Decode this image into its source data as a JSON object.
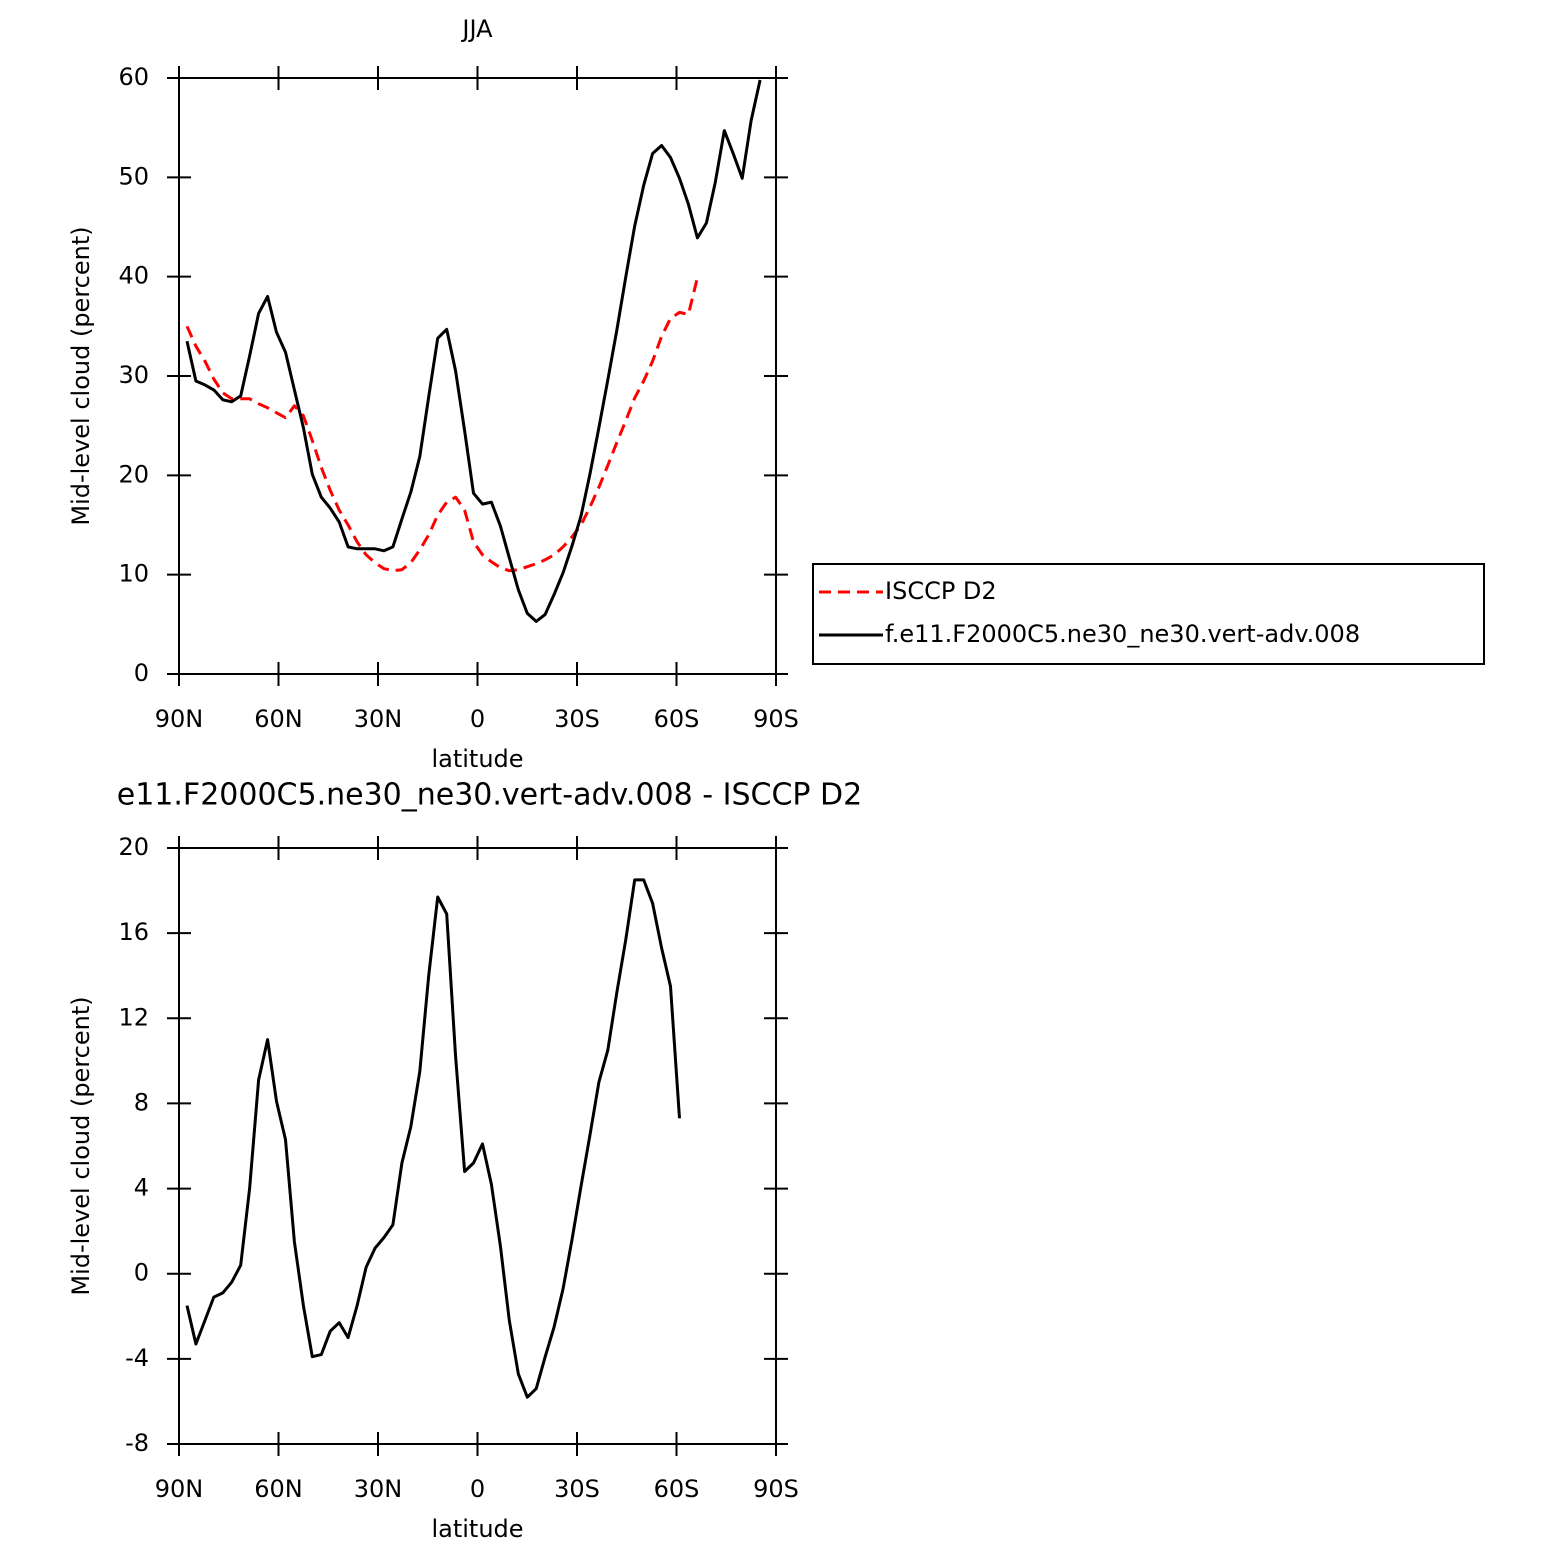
{
  "chart_data": [
    {
      "type": "line",
      "title": "JJA",
      "xlabel": "latitude",
      "ylabel": "Mid-level cloud (percent)",
      "x": [
        87.6,
        84.9,
        82.2,
        79.5,
        76.8,
        74.1,
        71.4,
        68.7,
        66.0,
        63.3,
        60.6,
        57.9,
        55.2,
        52.5,
        49.8,
        47.1,
        44.4,
        41.7,
        39.0,
        36.3,
        33.6,
        30.9,
        28.2,
        25.5,
        22.8,
        20.1,
        17.4,
        14.7,
        12.0,
        9.3,
        6.6,
        3.9,
        1.2,
        -1.5,
        -4.2,
        -6.9,
        -9.6,
        -12.3,
        -15.0,
        -17.7,
        -20.4,
        -23.1,
        -25.8,
        -28.5,
        -31.2,
        -33.9,
        -36.6,
        -39.3,
        -42.0,
        -44.7,
        -47.4,
        -50.1,
        -52.8,
        -55.5,
        -58.2,
        -60.9,
        -63.6,
        -66.3,
        -69.0,
        -71.7,
        -74.4,
        -77.1,
        -79.8,
        -82.5,
        -85.2
      ],
      "series": [
        {
          "name": "ISCCP D2",
          "color": "#ff0000",
          "dashed": true,
          "values": [
            35.0,
            33.0,
            31.5,
            29.7,
            28.3,
            27.7,
            27.7,
            27.7,
            27.2,
            26.8,
            26.3,
            25.8,
            27.0,
            26.0,
            23.5,
            20.8,
            18.5,
            16.5,
            15.0,
            13.3,
            12.0,
            11.2,
            10.6,
            10.4,
            10.5,
            11.2,
            12.5,
            14.0,
            16.0,
            17.3,
            17.8,
            16.5,
            13.3,
            12.0,
            11.3,
            10.7,
            10.4,
            10.5,
            10.8,
            11.1,
            11.5,
            12.0,
            12.8,
            13.8,
            15.0,
            16.8,
            18.8,
            21.0,
            23.3,
            25.5,
            27.8,
            29.5,
            31.5,
            34.0,
            35.8,
            36.4,
            36.2,
            39.9,
            null,
            null,
            null,
            null,
            null,
            null,
            null
          ]
        },
        {
          "name": "f.e11.F2000C5.ne30_ne30.vert-adv.008",
          "color": "#000000",
          "dashed": false,
          "values": [
            33.5,
            29.5,
            29.1,
            28.6,
            27.6,
            27.4,
            28.0,
            32.0,
            36.3,
            38.0,
            34.4,
            32.4,
            28.6,
            24.8,
            20.1,
            17.8,
            16.7,
            15.3,
            12.8,
            12.6,
            12.6,
            12.6,
            12.4,
            12.8,
            15.6,
            18.3,
            21.9,
            27.9,
            33.8,
            34.7,
            30.5,
            24.5,
            18.2,
            17.1,
            17.3,
            14.9,
            11.7,
            8.5,
            6.1,
            5.3,
            6.0,
            8.0,
            10.2,
            12.9,
            15.9,
            20.1,
            24.8,
            29.6,
            34.6,
            40.0,
            45.1,
            49.2,
            52.4,
            53.2,
            52.0,
            49.9,
            47.3,
            43.9,
            45.4,
            49.5,
            54.7,
            52.4,
            49.9,
            55.7,
            59.8
          ]
        }
      ],
      "xlim": [
        90,
        -90
      ],
      "xticks": [
        {
          "value": 90,
          "label": "90N"
        },
        {
          "value": 60,
          "label": "60N"
        },
        {
          "value": 30,
          "label": "30N"
        },
        0,
        {
          "value": -30,
          "label": "30S"
        },
        {
          "value": -60,
          "label": "60S"
        },
        {
          "value": -90,
          "label": "90S"
        }
      ],
      "ylim": [
        0,
        60
      ],
      "yticks": [
        0,
        10,
        20,
        30,
        40,
        50,
        60
      ],
      "legend": "right"
    },
    {
      "type": "line",
      "title": "e11.F2000C5.ne30_ne30.vert-adv.008 - ISCCP D2",
      "xlabel": "latitude",
      "ylabel": "Mid-level cloud (percent)",
      "x": [
        87.6,
        84.9,
        82.2,
        79.5,
        76.8,
        74.1,
        71.4,
        68.7,
        66.0,
        63.3,
        60.6,
        57.9,
        55.2,
        52.5,
        49.8,
        47.1,
        44.4,
        41.7,
        39.0,
        36.3,
        33.6,
        30.9,
        28.2,
        25.5,
        22.8,
        20.1,
        17.4,
        14.7,
        12.0,
        9.3,
        6.6,
        3.9,
        1.2,
        -1.5,
        -4.2,
        -6.9,
        -9.6,
        -12.3,
        -15.0,
        -17.7,
        -20.4,
        -23.1,
        -25.8,
        -28.5,
        -31.2,
        -33.9,
        -36.6,
        -39.3,
        -42.0,
        -44.7,
        -47.4,
        -50.1,
        -52.8,
        -55.5,
        -58.2,
        -60.9
      ],
      "series": [
        {
          "color": "#000000",
          "dashed": false,
          "values": [
            -1.5,
            -3.3,
            -2.2,
            -1.1,
            -0.9,
            -0.4,
            0.4,
            4.0,
            9.1,
            11.0,
            8.1,
            6.3,
            1.5,
            -1.5,
            -3.9,
            -3.8,
            -2.7,
            -2.3,
            -3.0,
            -1.5,
            0.3,
            1.2,
            1.7,
            2.3,
            5.2,
            6.9,
            9.5,
            14.0,
            17.7,
            16.9,
            10.2,
            4.8,
            5.2,
            6.1,
            4.2,
            1.3,
            -2.2,
            -4.7,
            -5.8,
            -5.4,
            -3.9,
            -2.5,
            -0.7,
            1.6,
            4.1,
            6.5,
            9.0,
            10.5,
            13.2,
            15.7,
            18.5,
            18.5,
            17.4,
            15.3,
            13.5,
            7.3
          ]
        }
      ],
      "xlim": [
        90,
        -90
      ],
      "xticks": [
        {
          "value": 90,
          "label": "90N"
        },
        {
          "value": 60,
          "label": "60N"
        },
        {
          "value": 30,
          "label": "30N"
        },
        0,
        {
          "value": -30,
          "label": "30S"
        },
        {
          "value": -60,
          "label": "60S"
        },
        {
          "value": -90,
          "label": "90S"
        }
      ],
      "ylim": [
        -8,
        20
      ],
      "yticks": [
        -8,
        -4,
        0,
        4,
        8,
        12,
        16,
        20
      ]
    }
  ]
}
